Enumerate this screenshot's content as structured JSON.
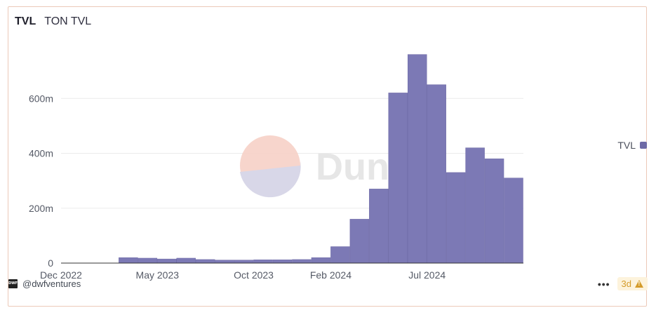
{
  "header": {
    "title": "TVL",
    "subtitle": "TON TVL"
  },
  "watermark": {
    "text": "Dune"
  },
  "legend": {
    "label": "TVL",
    "color": "#6e6aa6"
  },
  "footer": {
    "author": "@dwfventures",
    "avatar_text": "DWF",
    "more_label": "•••",
    "freshness": "3d"
  },
  "colors": {
    "bar": "#7c79b5",
    "bar_edge": "#6e6aa6",
    "grid": "#ebebeb",
    "card_border": "#ecc9b8"
  },
  "chart_data": {
    "type": "bar",
    "title": "TON TVL",
    "xlabel": "",
    "ylabel": "",
    "x_tick_labels": [
      "Dec 2022",
      "May 2023",
      "Oct 2023",
      "Feb 2024",
      "Jul 2024"
    ],
    "y_tick_labels": [
      "0",
      "200m",
      "400m",
      "600m"
    ],
    "ylim": [
      0,
      800000000
    ],
    "grid": true,
    "legend_position": "right",
    "series": [
      {
        "name": "TVL",
        "x": [
          "2023-03",
          "2023-04",
          "2023-05",
          "2023-06",
          "2023-07",
          "2023-08",
          "2023-09",
          "2023-10",
          "2023-11",
          "2023-12",
          "2024-01",
          "2024-02",
          "2024-03",
          "2024-04",
          "2024-05",
          "2024-06",
          "2024-07",
          "2024-08",
          "2024-09",
          "2024-10",
          "2024-11"
        ],
        "values": [
          20000000,
          18000000,
          15000000,
          18000000,
          13000000,
          11000000,
          11000000,
          12000000,
          12000000,
          13000000,
          20000000,
          60000000,
          160000000,
          270000000,
          620000000,
          760000000,
          650000000,
          330000000,
          420000000,
          380000000,
          310000000
        ]
      }
    ]
  }
}
